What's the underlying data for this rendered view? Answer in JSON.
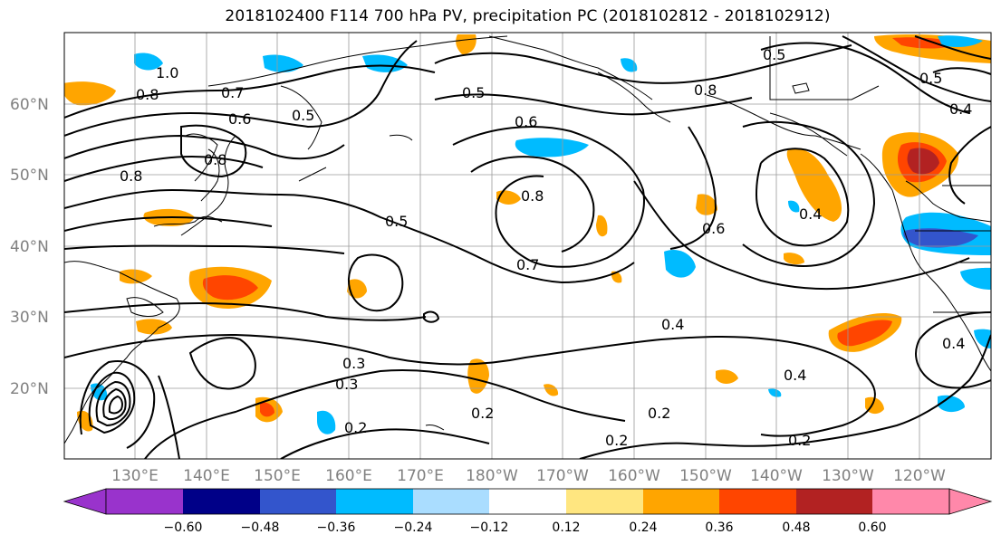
{
  "title": "2018102400 F114 700 hPa PV, precipitation PC (2018102812 - 2018102912)",
  "lat_labels": [
    "60°N",
    "50°N",
    "40°N",
    "30°N",
    "20°N"
  ],
  "lon_labels": [
    "130°E",
    "140°E",
    "150°E",
    "160°E",
    "170°E",
    "180°W",
    "170°W",
    "160°W",
    "150°W",
    "140°W",
    "130°W",
    "120°W"
  ],
  "colorbar": {
    "tick_labels": [
      "−0.60",
      "−0.48",
      "−0.36",
      "−0.24",
      "−0.12",
      "0.12",
      "0.24",
      "0.36",
      "0.48",
      "0.60"
    ],
    "colors": [
      "#9933cc",
      "#000088",
      "#3355cc",
      "#00bbff",
      "#aaddff",
      "#ffffff",
      "#ffe680",
      "#ffa500",
      "#ff4500",
      "#b22222",
      "#ff88aa"
    ]
  },
  "contour_labels": [
    "1.0",
    "0.8",
    "0.7",
    "0.6",
    "0.5",
    "0.6",
    "0.8",
    "0.5",
    "0.5",
    "0.6",
    "0.8",
    "0.7",
    "0.4",
    "0.5",
    "0.4",
    "0.3",
    "0.3",
    "0.2",
    "0.2",
    "0.2",
    "0.2",
    "0.4",
    "0.4",
    "0.2",
    "0.8",
    "0.8",
    "0.5",
    "0.4"
  ]
}
